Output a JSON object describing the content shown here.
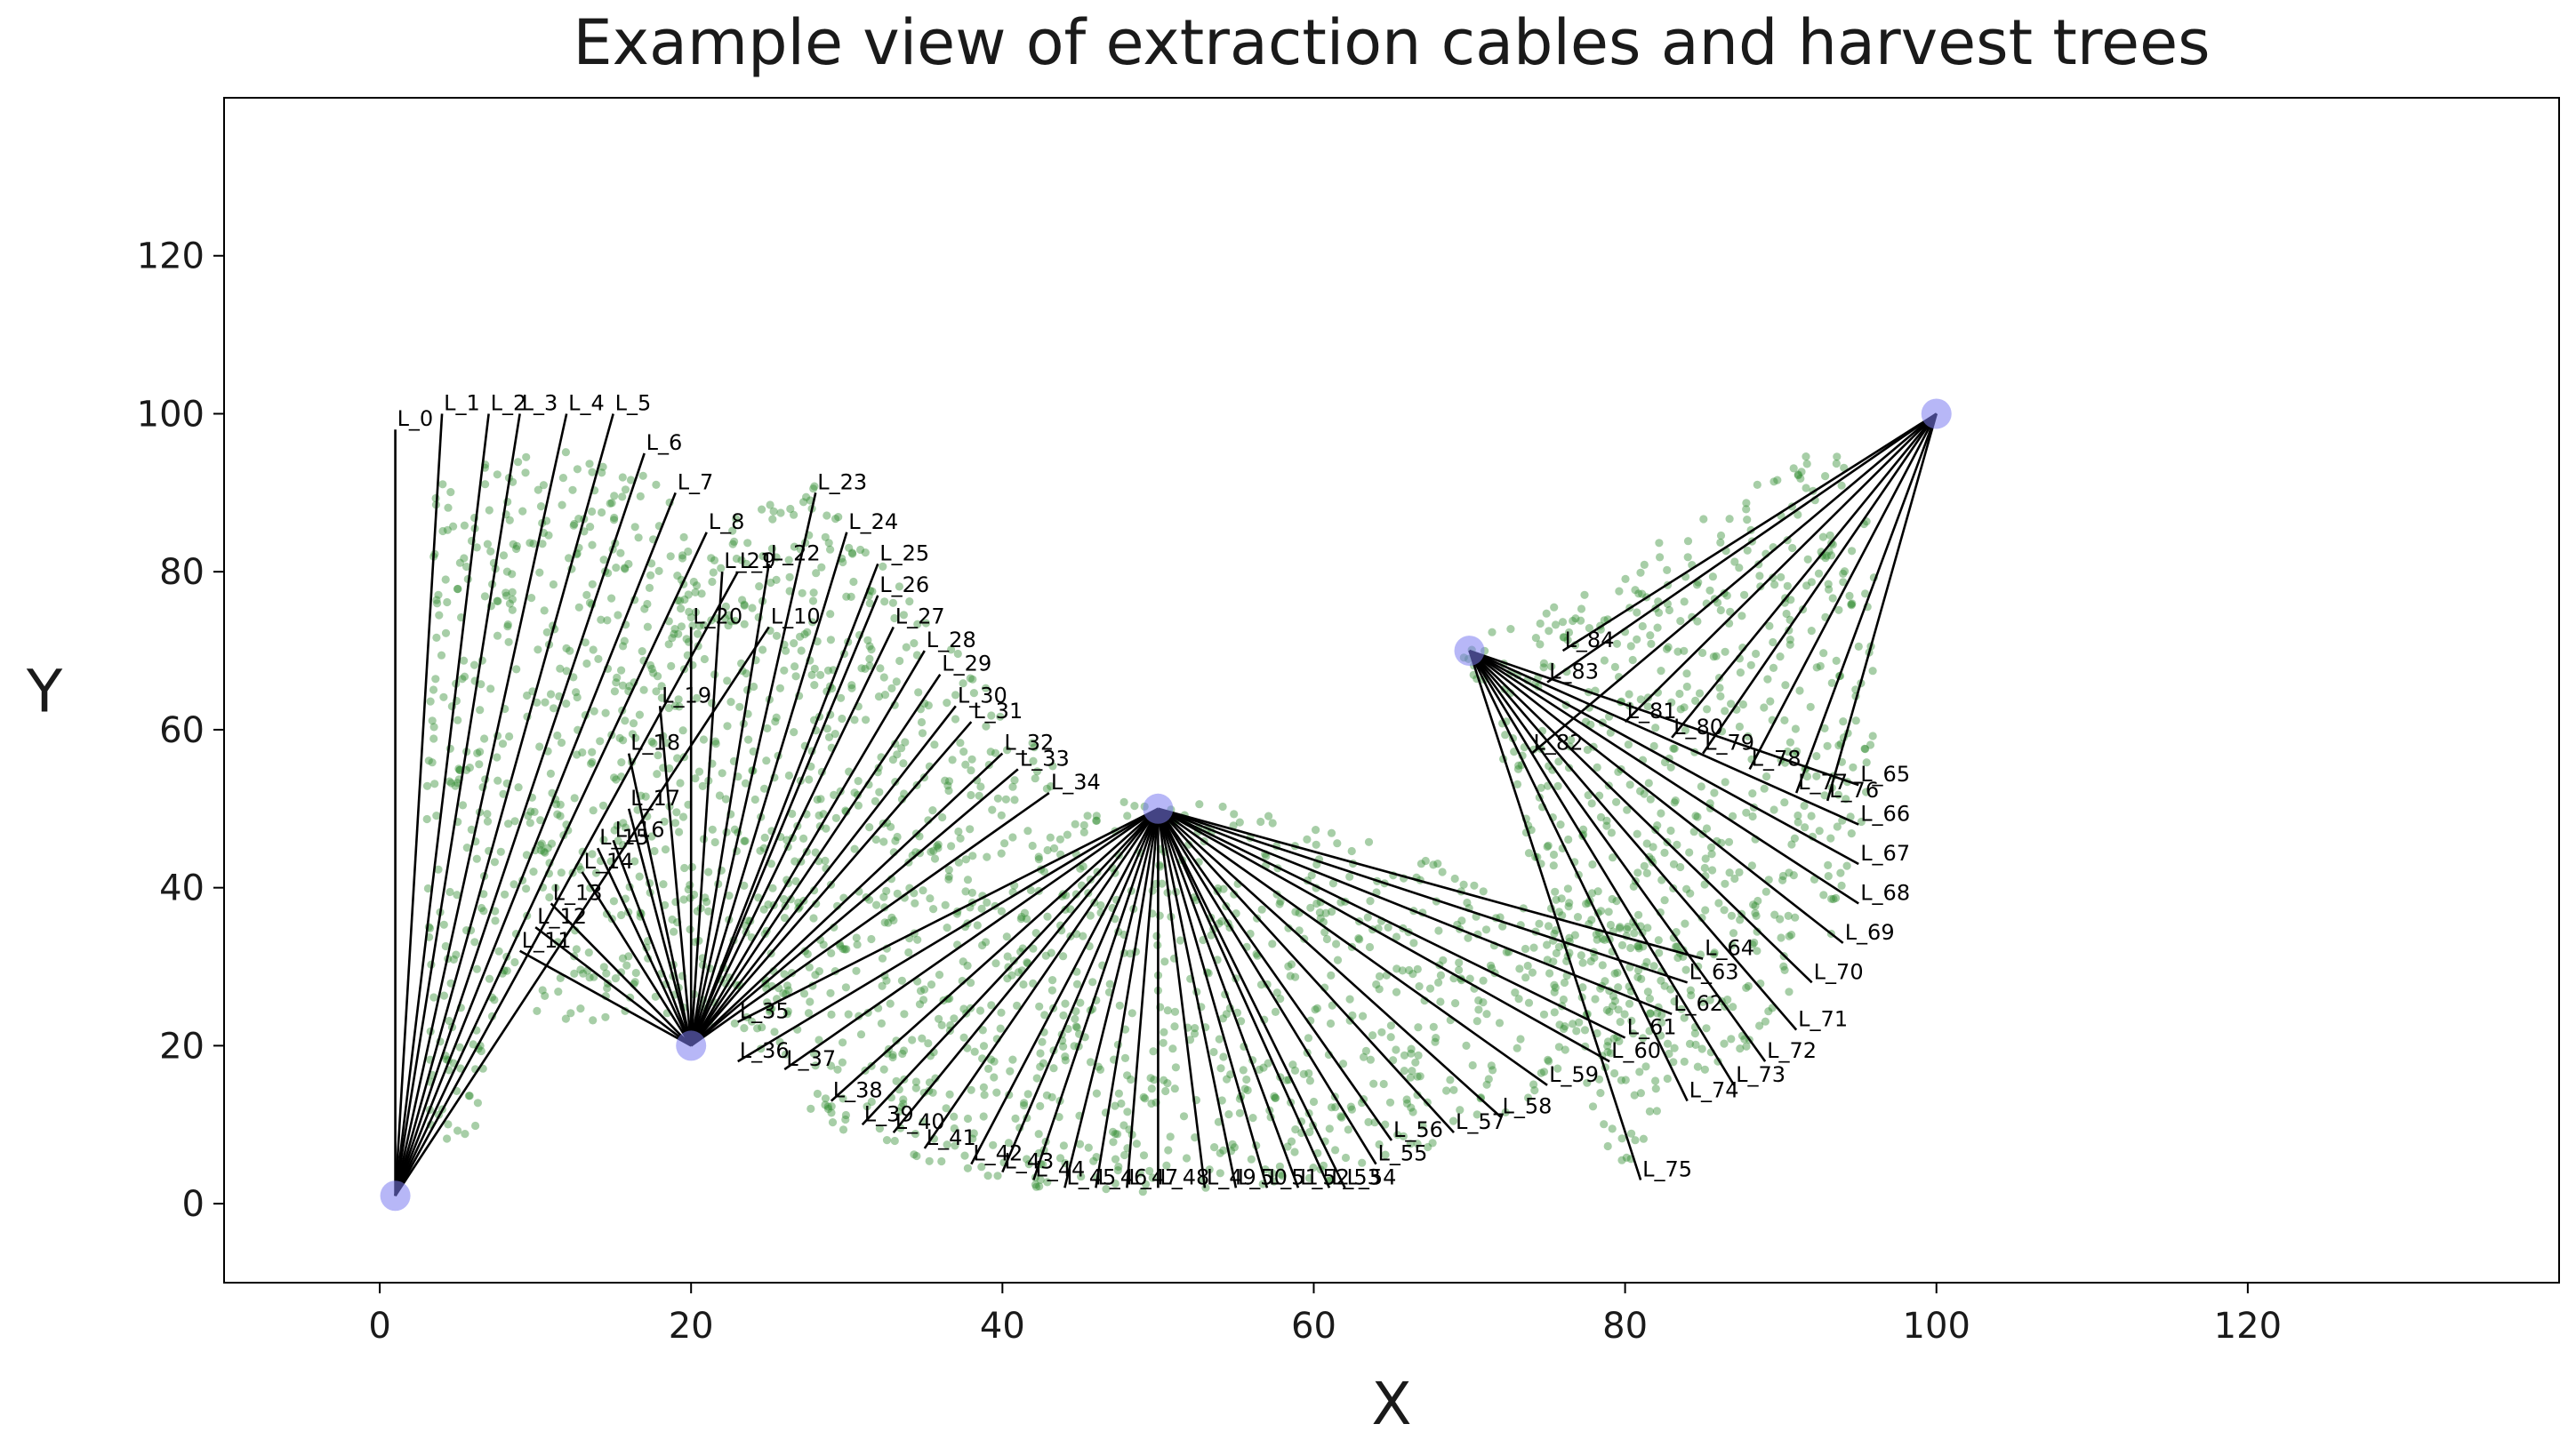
{
  "chart_data": {
    "type": "scatter",
    "title": "Example view of extraction cables and harvest trees",
    "xlabel": "X",
    "ylabel": "Y",
    "xlim": [
      -10,
      140
    ],
    "ylim": [
      -10,
      140
    ],
    "xticks": [
      0,
      20,
      40,
      60,
      80,
      100,
      120
    ],
    "yticks": [
      0,
      20,
      40,
      60,
      80,
      100,
      120
    ],
    "grid": false,
    "legend": "none",
    "colors": {
      "trees": "#2e8b2e",
      "anchors": "#7b7bf0",
      "cables": "#000000",
      "axes": "#000000"
    },
    "anchors": [
      [
        1,
        1
      ],
      [
        20,
        20
      ],
      [
        50,
        50
      ],
      [
        70,
        70
      ],
      [
        100,
        100
      ]
    ],
    "cables": [
      {
        "label": "L_0",
        "from": [
          1,
          1
        ],
        "to": [
          1,
          98
        ]
      },
      {
        "label": "L_1",
        "from": [
          1,
          1
        ],
        "to": [
          4,
          100
        ]
      },
      {
        "label": "L_2",
        "from": [
          1,
          1
        ],
        "to": [
          7,
          100
        ]
      },
      {
        "label": "L_3",
        "from": [
          1,
          1
        ],
        "to": [
          9,
          100
        ]
      },
      {
        "label": "L_4",
        "from": [
          1,
          1
        ],
        "to": [
          12,
          100
        ]
      },
      {
        "label": "L_5",
        "from": [
          1,
          1
        ],
        "to": [
          15,
          100
        ]
      },
      {
        "label": "L_6",
        "from": [
          1,
          1
        ],
        "to": [
          17,
          95
        ]
      },
      {
        "label": "L_7",
        "from": [
          1,
          1
        ],
        "to": [
          19,
          90
        ]
      },
      {
        "label": "L_8",
        "from": [
          1,
          1
        ],
        "to": [
          21,
          85
        ]
      },
      {
        "label": "L_9",
        "from": [
          1,
          1
        ],
        "to": [
          23,
          80
        ]
      },
      {
        "label": "L_10",
        "from": [
          1,
          1
        ],
        "to": [
          25,
          73
        ]
      },
      {
        "label": "L_11",
        "from": [
          20,
          20
        ],
        "to": [
          9,
          32
        ]
      },
      {
        "label": "L_12",
        "from": [
          20,
          20
        ],
        "to": [
          10,
          35
        ]
      },
      {
        "label": "L_13",
        "from": [
          20,
          20
        ],
        "to": [
          11,
          38
        ]
      },
      {
        "label": "L_14",
        "from": [
          20,
          20
        ],
        "to": [
          13,
          42
        ]
      },
      {
        "label": "L_15",
        "from": [
          20,
          20
        ],
        "to": [
          14,
          45
        ]
      },
      {
        "label": "L_16",
        "from": [
          20,
          20
        ],
        "to": [
          15,
          46
        ]
      },
      {
        "label": "L_17",
        "from": [
          20,
          20
        ],
        "to": [
          16,
          50
        ]
      },
      {
        "label": "L_18",
        "from": [
          20,
          20
        ],
        "to": [
          16,
          57
        ]
      },
      {
        "label": "L_19",
        "from": [
          20,
          20
        ],
        "to": [
          18,
          63
        ]
      },
      {
        "label": "L_20",
        "from": [
          20,
          20
        ],
        "to": [
          20,
          73
        ]
      },
      {
        "label": "L_21",
        "from": [
          20,
          20
        ],
        "to": [
          22,
          80
        ]
      },
      {
        "label": "L_22",
        "from": [
          20,
          20
        ],
        "to": [
          25,
          81
        ]
      },
      {
        "label": "L_23",
        "from": [
          20,
          20
        ],
        "to": [
          28,
          90
        ]
      },
      {
        "label": "L_24",
        "from": [
          20,
          20
        ],
        "to": [
          30,
          85
        ]
      },
      {
        "label": "L_25",
        "from": [
          20,
          20
        ],
        "to": [
          32,
          81
        ]
      },
      {
        "label": "L_26",
        "from": [
          20,
          20
        ],
        "to": [
          32,
          77
        ]
      },
      {
        "label": "L_27",
        "from": [
          20,
          20
        ],
        "to": [
          33,
          73
        ]
      },
      {
        "label": "L_28",
        "from": [
          20,
          20
        ],
        "to": [
          35,
          70
        ]
      },
      {
        "label": "L_29",
        "from": [
          20,
          20
        ],
        "to": [
          36,
          67
        ]
      },
      {
        "label": "L_30",
        "from": [
          20,
          20
        ],
        "to": [
          37,
          63
        ]
      },
      {
        "label": "L_31",
        "from": [
          20,
          20
        ],
        "to": [
          38,
          61
        ]
      },
      {
        "label": "L_32",
        "from": [
          20,
          20
        ],
        "to": [
          40,
          57
        ]
      },
      {
        "label": "L_33",
        "from": [
          20,
          20
        ],
        "to": [
          41,
          55
        ]
      },
      {
        "label": "L_34",
        "from": [
          20,
          20
        ],
        "to": [
          43,
          52
        ]
      },
      {
        "label": "L_35",
        "from": [
          50,
          50
        ],
        "to": [
          23,
          23
        ]
      },
      {
        "label": "L_36",
        "from": [
          50,
          50
        ],
        "to": [
          23,
          18
        ]
      },
      {
        "label": "L_37",
        "from": [
          50,
          50
        ],
        "to": [
          26,
          17
        ]
      },
      {
        "label": "L_38",
        "from": [
          50,
          50
        ],
        "to": [
          29,
          13
        ]
      },
      {
        "label": "L_39",
        "from": [
          50,
          50
        ],
        "to": [
          31,
          10
        ]
      },
      {
        "label": "L_40",
        "from": [
          50,
          50
        ],
        "to": [
          33,
          9
        ]
      },
      {
        "label": "L_41",
        "from": [
          50,
          50
        ],
        "to": [
          35,
          7
        ]
      },
      {
        "label": "L_42",
        "from": [
          50,
          50
        ],
        "to": [
          38,
          5
        ]
      },
      {
        "label": "L_43",
        "from": [
          50,
          50
        ],
        "to": [
          40,
          4
        ]
      },
      {
        "label": "L_44",
        "from": [
          50,
          50
        ],
        "to": [
          42,
          3
        ]
      },
      {
        "label": "L_45",
        "from": [
          50,
          50
        ],
        "to": [
          44,
          2
        ]
      },
      {
        "label": "L_46",
        "from": [
          50,
          50
        ],
        "to": [
          46,
          2
        ]
      },
      {
        "label": "L_47",
        "from": [
          50,
          50
        ],
        "to": [
          48,
          2
        ]
      },
      {
        "label": "L_48",
        "from": [
          50,
          50
        ],
        "to": [
          50,
          2
        ]
      },
      {
        "label": "L_49",
        "from": [
          50,
          50
        ],
        "to": [
          53,
          2
        ]
      },
      {
        "label": "L_50",
        "from": [
          50,
          50
        ],
        "to": [
          55,
          2
        ]
      },
      {
        "label": "L_51",
        "from": [
          50,
          50
        ],
        "to": [
          57,
          2
        ]
      },
      {
        "label": "L_52",
        "from": [
          50,
          50
        ],
        "to": [
          59,
          2
        ]
      },
      {
        "label": "L_53",
        "from": [
          50,
          50
        ],
        "to": [
          61,
          2
        ]
      },
      {
        "label": "L_54",
        "from": [
          50,
          50
        ],
        "to": [
          62,
          2
        ]
      },
      {
        "label": "L_55",
        "from": [
          50,
          50
        ],
        "to": [
          64,
          5
        ]
      },
      {
        "label": "L_56",
        "from": [
          50,
          50
        ],
        "to": [
          65,
          8
        ]
      },
      {
        "label": "L_57",
        "from": [
          50,
          50
        ],
        "to": [
          69,
          9
        ]
      },
      {
        "label": "L_58",
        "from": [
          50,
          50
        ],
        "to": [
          72,
          11
        ]
      },
      {
        "label": "L_59",
        "from": [
          50,
          50
        ],
        "to": [
          75,
          15
        ]
      },
      {
        "label": "L_60",
        "from": [
          50,
          50
        ],
        "to": [
          79,
          18
        ]
      },
      {
        "label": "L_61",
        "from": [
          50,
          50
        ],
        "to": [
          80,
          21
        ]
      },
      {
        "label": "L_62",
        "from": [
          50,
          50
        ],
        "to": [
          83,
          24
        ]
      },
      {
        "label": "L_63",
        "from": [
          50,
          50
        ],
        "to": [
          84,
          28
        ]
      },
      {
        "label": "L_64",
        "from": [
          50,
          50
        ],
        "to": [
          85,
          31
        ]
      },
      {
        "label": "L_65",
        "from": [
          70,
          70
        ],
        "to": [
          95,
          53
        ]
      },
      {
        "label": "L_66",
        "from": [
          70,
          70
        ],
        "to": [
          95,
          48
        ]
      },
      {
        "label": "L_67",
        "from": [
          70,
          70
        ],
        "to": [
          95,
          43
        ]
      },
      {
        "label": "L_68",
        "from": [
          70,
          70
        ],
        "to": [
          95,
          38
        ]
      },
      {
        "label": "L_69",
        "from": [
          70,
          70
        ],
        "to": [
          94,
          33
        ]
      },
      {
        "label": "L_70",
        "from": [
          70,
          70
        ],
        "to": [
          92,
          28
        ]
      },
      {
        "label": "L_71",
        "from": [
          70,
          70
        ],
        "to": [
          91,
          22
        ]
      },
      {
        "label": "L_72",
        "from": [
          70,
          70
        ],
        "to": [
          89,
          18
        ]
      },
      {
        "label": "L_73",
        "from": [
          70,
          70
        ],
        "to": [
          87,
          15
        ]
      },
      {
        "label": "L_74",
        "from": [
          70,
          70
        ],
        "to": [
          84,
          13
        ]
      },
      {
        "label": "L_75",
        "from": [
          70,
          70
        ],
        "to": [
          81,
          3
        ]
      },
      {
        "label": "L_76",
        "from": [
          100,
          100
        ],
        "to": [
          93,
          51
        ]
      },
      {
        "label": "L_77",
        "from": [
          100,
          100
        ],
        "to": [
          91,
          52
        ]
      },
      {
        "label": "L_78",
        "from": [
          100,
          100
        ],
        "to": [
          88,
          55
        ]
      },
      {
        "label": "L_79",
        "from": [
          100,
          100
        ],
        "to": [
          85,
          57
        ]
      },
      {
        "label": "L_80",
        "from": [
          100,
          100
        ],
        "to": [
          83,
          59
        ]
      },
      {
        "label": "L_81",
        "from": [
          100,
          100
        ],
        "to": [
          80,
          61
        ]
      },
      {
        "label": "L_82",
        "from": [
          100,
          100
        ],
        "to": [
          74,
          57
        ]
      },
      {
        "label": "L_83",
        "from": [
          100,
          100
        ],
        "to": [
          75,
          66
        ]
      },
      {
        "label": "L_84",
        "from": [
          100,
          100
        ],
        "to": [
          76,
          70
        ]
      }
    ],
    "tree_regions": [
      [
        [
          3,
          6
        ],
        [
          3,
          92
        ],
        [
          11,
          96
        ],
        [
          19,
          92
        ],
        [
          21,
          72
        ],
        [
          15,
          52
        ],
        [
          9,
          32
        ],
        [
          6,
          8
        ]
      ],
      [
        [
          10,
          24
        ],
        [
          12,
          40
        ],
        [
          15,
          58
        ],
        [
          18,
          72
        ],
        [
          22,
          86
        ],
        [
          28,
          91
        ],
        [
          36,
          74
        ],
        [
          44,
          54
        ],
        [
          36,
          40
        ],
        [
          26,
          26
        ],
        [
          18,
          20
        ],
        [
          13,
          22
        ]
      ],
      [
        [
          26,
          14
        ],
        [
          32,
          6
        ],
        [
          42,
          2
        ],
        [
          52,
          1
        ],
        [
          62,
          3
        ],
        [
          70,
          9
        ],
        [
          78,
          17
        ],
        [
          84,
          26
        ],
        [
          86,
          32
        ],
        [
          78,
          38
        ],
        [
          70,
          42
        ],
        [
          60,
          48
        ],
        [
          50,
          52
        ],
        [
          40,
          47
        ],
        [
          30,
          34
        ],
        [
          22,
          22
        ]
      ],
      [
        [
          69,
          70
        ],
        [
          71,
          72
        ],
        [
          76,
          76
        ],
        [
          82,
          84
        ],
        [
          88,
          91
        ],
        [
          93,
          96
        ],
        [
          96,
          90
        ],
        [
          96,
          58
        ],
        [
          95,
          46
        ],
        [
          93,
          32
        ],
        [
          88,
          20
        ],
        [
          84,
          13
        ],
        [
          80,
          4
        ],
        [
          78,
          8
        ],
        [
          75,
          30
        ],
        [
          73,
          50
        ],
        [
          71,
          63
        ]
      ]
    ],
    "tree_count": 2600
  }
}
